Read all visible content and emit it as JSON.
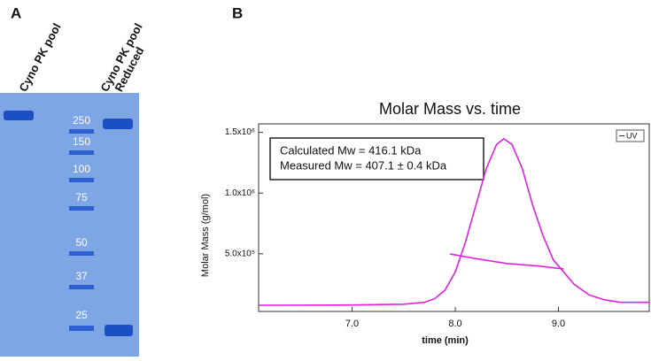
{
  "panel_labels": [
    "A",
    "B"
  ],
  "gel": {
    "lane_labels": [
      "Cyno PK pool",
      "Cyno PK pool",
      "Reduced"
    ],
    "ladder": [
      "250",
      "150",
      "100",
      "75",
      "50",
      "37",
      "25"
    ]
  },
  "chart_data": {
    "type": "line",
    "title": "Molar Mass vs. time",
    "x_label": "time (min)",
    "y_label": "Molar Mass (g/mol)",
    "annotations": [
      "Calculated Mw = 416.1 kDa",
      "Measured Mw = 407.1 ± 0.4 kDa"
    ],
    "xlim": [
      6.094,
      9.88
    ],
    "ylim": [
      25000,
      1570000
    ],
    "xticks": [
      {
        "value": 7,
        "label": "7.0"
      },
      {
        "value": 8,
        "label": "8.0"
      },
      {
        "value": 9,
        "label": "9.0"
      }
    ],
    "yticks": [
      {
        "value": 500000,
        "label": "5.0x10⁵"
      },
      {
        "value": 1000000,
        "label": "1.0x10⁶"
      },
      {
        "value": 1500000,
        "label": "1.5x10⁶"
      }
    ],
    "legend": "top-right",
    "series": [
      {
        "name": "UV",
        "color": "#e020e0",
        "x": [
          6.1,
          7.0,
          7.5,
          7.7,
          7.8,
          7.9,
          8.0,
          8.1,
          8.2,
          8.3,
          8.4,
          8.47,
          8.55,
          8.65,
          8.75,
          8.85,
          8.95,
          9.05,
          9.15,
          9.3,
          9.45,
          9.6,
          9.88
        ],
        "values": [
          76000,
          78000,
          85000,
          100000,
          130000,
          200000,
          350000,
          600000,
          900000,
          1200000,
          1400000,
          1448000,
          1400000,
          1200000,
          900000,
          650000,
          450000,
          350000,
          250000,
          160000,
          120000,
          100000,
          100000
        ]
      },
      {
        "color": "#e020e0",
        "x": [
          7.95,
          8.2,
          8.5,
          8.8,
          9.05
        ],
        "values": [
          498000,
          460000,
          420000,
          400000,
          375000
        ]
      }
    ]
  }
}
